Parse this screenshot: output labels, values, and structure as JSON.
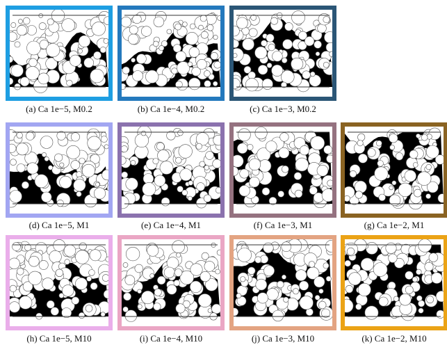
{
  "panels": [
    {
      "caption": "(a) Ca 1e−5, M0.2",
      "color": "#1e9ee2"
    },
    {
      "caption": "(b) Ca 1e−4, M0.2",
      "color": "#2479bd"
    },
    {
      "caption": "(c) Ca 1e−3, M0.2",
      "color": "#2b5676"
    },
    {
      "caption": "(d) Ca 1e−5, M1",
      "color": "#a2a6f2"
    },
    {
      "caption": "(e) Ca 1e−4, M1",
      "color": "#8b72ae"
    },
    {
      "caption": "(f) Ca 1e−3, M1",
      "color": "#957280"
    },
    {
      "caption": "(g) Ca 1e−2, M1",
      "color": "#8a6322"
    },
    {
      "caption": "(h) Ca 1e−5, M10",
      "color": "#eaaeea"
    },
    {
      "caption": "(i) Ca 1e−4, M10",
      "color": "#eaa6c4"
    },
    {
      "caption": "(j) Ca 1e−3, M10",
      "color": "#e3a482"
    },
    {
      "caption": "(k) Ca 1e−2, M10",
      "color": "#eba316"
    }
  ]
}
